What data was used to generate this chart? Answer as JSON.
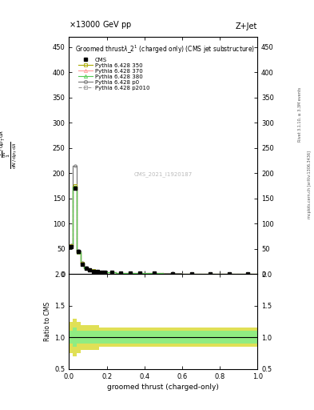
{
  "title_top": "13000 GeV pp",
  "title_right": "Z+Jet",
  "plot_title": "Groomed thrustλ_2$^1$ (charged only) (CMS jet substructure)",
  "xlabel": "groomed thrust (charged-only)",
  "ylabel_main_lines": [
    "mathrm d^{2}N",
    "mathrm d p_{T} mathrm d lambda"
  ],
  "ylabel_ratio": "Ratio to CMS",
  "right_label_top": "Rivet 3.1.10, ≥ 3.3M events",
  "right_label_bot": "mcplots.cern.ch [arXiv:1306.3436]",
  "watermark": "CMS_2021_I1920187",
  "ylim_main": [
    0,
    470
  ],
  "ylim_ratio": [
    0.5,
    2.0
  ],
  "xlim": [
    0,
    1
  ],
  "yticks_main": [
    0,
    50,
    100,
    150,
    200,
    250,
    300,
    350,
    400,
    450
  ],
  "yticks_ratio": [
    0.5,
    1.0,
    1.5,
    2.0
  ],
  "bin_edges": [
    0.0,
    0.02,
    0.04,
    0.06,
    0.08,
    0.1,
    0.12,
    0.14,
    0.16,
    0.18,
    0.2,
    0.25,
    0.3,
    0.35,
    0.4,
    0.5,
    0.6,
    0.7,
    0.8,
    0.9,
    1.0
  ],
  "cms_values": [
    55,
    170,
    45,
    20,
    12,
    8,
    6,
    5,
    4,
    3.5,
    3,
    2.5,
    2,
    1.8,
    1.5,
    1.2,
    1.0,
    0.8,
    0.5,
    0.3
  ],
  "py350_values": [
    56,
    175,
    44,
    21,
    12,
    8.5,
    6.2,
    5.1,
    4.1,
    3.6,
    3.1,
    2.6,
    2.1,
    1.9,
    1.6,
    1.25,
    1.05,
    0.85,
    0.55,
    0.35
  ],
  "py370_values": [
    54,
    172,
    44,
    20.5,
    12,
    8.3,
    6.1,
    5.0,
    4.0,
    3.5,
    3.0,
    2.5,
    2.0,
    1.8,
    1.5,
    1.2,
    1.0,
    0.8,
    0.5,
    0.3
  ],
  "py380_values": [
    54,
    173,
    44,
    20.5,
    12,
    8.3,
    6.1,
    5.0,
    4.0,
    3.5,
    3.0,
    2.5,
    2.0,
    1.8,
    1.5,
    1.2,
    1.0,
    0.8,
    0.5,
    0.3
  ],
  "pyp0_values": [
    57,
    215,
    46,
    22,
    13,
    9,
    6.5,
    5.3,
    4.2,
    3.7,
    3.2,
    2.7,
    2.2,
    2.0,
    1.7,
    1.35,
    1.1,
    0.9,
    0.6,
    0.4
  ],
  "pyp2010_values": [
    56,
    175,
    44,
    21,
    12,
    8.5,
    6.2,
    5.1,
    4.1,
    3.6,
    3.1,
    2.6,
    2.1,
    1.9,
    1.6,
    1.25,
    1.05,
    0.85,
    0.55,
    0.35
  ],
  "ratio_350_upper": [
    1.25,
    1.3,
    1.25,
    1.2,
    1.2,
    1.2,
    1.2,
    1.2,
    1.15,
    1.15,
    1.15,
    1.15,
    1.15,
    1.15,
    1.15,
    1.15,
    1.15,
    1.15,
    1.15,
    1.15
  ],
  "ratio_350_lower": [
    0.75,
    0.7,
    0.75,
    0.8,
    0.8,
    0.8,
    0.8,
    0.8,
    0.85,
    0.85,
    0.85,
    0.85,
    0.85,
    0.85,
    0.85,
    0.85,
    0.85,
    0.85,
    0.85,
    0.85
  ],
  "ratio_380_upper": [
    1.1,
    1.15,
    1.1,
    1.1,
    1.1,
    1.1,
    1.1,
    1.1,
    1.1,
    1.1,
    1.1,
    1.1,
    1.1,
    1.1,
    1.1,
    1.1,
    1.1,
    1.1,
    1.1,
    1.1
  ],
  "ratio_380_lower": [
    0.9,
    0.85,
    0.9,
    0.9,
    0.9,
    0.9,
    0.9,
    0.9,
    0.9,
    0.9,
    0.9,
    0.9,
    0.9,
    0.9,
    0.9,
    0.9,
    0.9,
    0.9,
    0.9,
    0.9
  ],
  "color_cms": "#000000",
  "color_350": "#aaaa00",
  "color_370": "#ff9999",
  "color_380": "#55cc55",
  "color_p0": "#777777",
  "color_p2010": "#999999",
  "color_band_350": "#dddd44",
  "color_band_380": "#88ee88"
}
